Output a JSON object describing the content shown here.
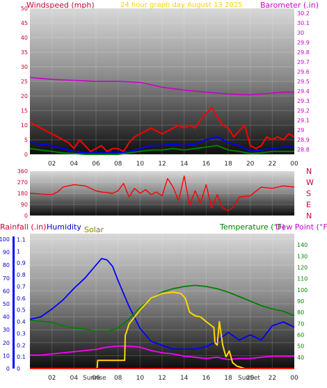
{
  "chart_data": [
    {
      "type": "line",
      "title": "24 hour graph day   August 13 2025",
      "ylabel_left": "Windspeed (mph)",
      "ylabel_right": "Barometer (.in)",
      "x_ticks": [
        "02",
        "04",
        "06",
        "08",
        "10",
        "12",
        "14",
        "16",
        "18",
        "20",
        "22",
        "00"
      ],
      "ylim_left": [
        0,
        50
      ],
      "ylim_right": [
        28.75,
        30.25
      ],
      "y_ticks_left": [
        0,
        5,
        10,
        15,
        20,
        25,
        30,
        35,
        40,
        45,
        50
      ],
      "y_ticks_right": [
        "28.8",
        "28.9",
        "29",
        "29.1",
        "29.2",
        "29.3",
        "29.4",
        "29.5",
        "29.6",
        "29.7",
        "29.8",
        "29.9",
        "30",
        "30.1",
        "30.2"
      ],
      "colors": {
        "gust": "#ff0000",
        "average": "#0000ff",
        "low": "#008000",
        "barometer": "#cc00cc",
        "title": "#ffd400",
        "left_axis": "#cc0033",
        "right_axis": "#cc00cc"
      },
      "series": [
        {
          "name": "Barometer",
          "axis": "right",
          "x": [
            0,
            2,
            4,
            6,
            8,
            10,
            12,
            14,
            16,
            18,
            20,
            21,
            22,
            23,
            24
          ],
          "values": [
            29.54,
            29.52,
            29.51,
            29.5,
            29.5,
            29.49,
            29.44,
            29.41,
            29.39,
            29.37,
            29.36,
            29.37,
            29.38,
            29.39,
            29.39
          ]
        },
        {
          "name": "Gust",
          "axis": "left",
          "x": [
            0,
            0.5,
            1,
            1.5,
            2,
            2.5,
            3,
            3.5,
            4,
            4.5,
            5,
            5.5,
            6,
            6.5,
            7,
            7.5,
            8,
            8.5,
            9,
            9.5,
            10,
            10.5,
            11,
            11.5,
            12,
            12.5,
            13,
            13.5,
            14,
            14.5,
            15,
            15.5,
            16,
            16.5,
            17,
            17.5,
            18,
            18.5,
            19,
            19.5,
            20,
            20.5,
            21,
            21.5,
            22,
            22.5,
            23,
            23.5,
            24
          ],
          "values": [
            11,
            10,
            9,
            8,
            7,
            6,
            5,
            4,
            2,
            5,
            3,
            1,
            2,
            3,
            1,
            2,
            2,
            1,
            4,
            6,
            7,
            8,
            9,
            8,
            7,
            8,
            9,
            10,
            9,
            10,
            9,
            12,
            14,
            16,
            13,
            10,
            9,
            6,
            8,
            10,
            3,
            2,
            3,
            6,
            5,
            6,
            5,
            7,
            6
          ]
        },
        {
          "name": "Wind",
          "axis": "left",
          "x": [
            0,
            1,
            2,
            3,
            4,
            5,
            6,
            7,
            8,
            9,
            10,
            11,
            12,
            13,
            14,
            15,
            16,
            17,
            18,
            19,
            20,
            21,
            22,
            23,
            24
          ],
          "values": [
            4,
            3.5,
            3,
            2,
            1,
            0.5,
            0.5,
            0.5,
            0.5,
            1,
            2,
            3,
            3,
            3.5,
            3,
            3.5,
            5,
            6,
            4,
            3,
            1,
            1.5,
            2,
            2.5,
            2.5
          ]
        },
        {
          "name": "Low",
          "axis": "left",
          "x": [
            0,
            1,
            2,
            3,
            4,
            5,
            6,
            7,
            8,
            9,
            10,
            11,
            12,
            13,
            14,
            15,
            16,
            17,
            18,
            19,
            20,
            21,
            22,
            23,
            24
          ],
          "values": [
            2,
            1.5,
            1,
            0.5,
            0.3,
            0,
            0,
            0,
            0,
            0.5,
            1,
            1.5,
            1.5,
            2,
            1.5,
            2,
            2.5,
            3,
            1.5,
            1,
            0.3,
            0.5,
            1,
            1,
            1
          ]
        }
      ]
    },
    {
      "type": "line",
      "ylabel_right_letters": [
        "N",
        "W",
        "S",
        "E",
        "N"
      ],
      "ylim": [
        0,
        360
      ],
      "y_ticks": [
        0,
        90,
        180,
        270,
        360
      ],
      "colors": {
        "direction": "#ff0000",
        "axis": "#cc0033"
      },
      "series": [
        {
          "name": "Wind Direction",
          "x": [
            0,
            1,
            2,
            2.5,
            3,
            4,
            5,
            6,
            6.5,
            7,
            7.5,
            8,
            8.5,
            9,
            9.5,
            10,
            10.5,
            11,
            11.5,
            12,
            12.5,
            13,
            13.5,
            14,
            14.5,
            15,
            15.5,
            16,
            16.5,
            17,
            17.5,
            18,
            18.5,
            19,
            20,
            21,
            22,
            23,
            24
          ],
          "values": [
            180,
            175,
            170,
            190,
            230,
            250,
            240,
            200,
            190,
            185,
            180,
            200,
            260,
            150,
            220,
            180,
            210,
            170,
            190,
            160,
            300,
            230,
            120,
            320,
            80,
            200,
            100,
            250,
            60,
            170,
            60,
            40,
            70,
            150,
            160,
            230,
            220,
            240,
            230
          ]
        }
      ]
    },
    {
      "type": "line",
      "ylabel_left": "Rainfall (.in)",
      "ylabel_humidity": "Humidity",
      "ylabel_solar": "Solar",
      "ylabel_right": "Temperature (°F)",
      "ylabel_right2": "Dew Point (°F)",
      "x_ticks": [
        "02",
        "04",
        "06",
        "08",
        "10",
        "12",
        "14",
        "16",
        "18",
        "20",
        "22",
        "00"
      ],
      "sun_labels": {
        "sunrise": "Sunrise",
        "sunset": "SunSet"
      },
      "ylim_humidity": [
        0,
        100
      ],
      "ylim_rain": [
        0,
        1.15
      ],
      "ylim_temperature": [
        30,
        150
      ],
      "y_ticks_humidity": [
        0,
        10,
        20,
        30,
        40,
        50,
        60,
        70,
        80,
        90,
        100
      ],
      "y_ticks_rain": [
        "0",
        "0.1",
        "0.2",
        "0.3",
        "0.4",
        "0.5",
        "0.6",
        "0.7",
        "0.8",
        "0.9",
        "1",
        "1.1"
      ],
      "y_ticks_temperature": [
        40,
        50,
        60,
        70,
        80,
        90,
        100,
        110,
        120,
        130,
        140
      ],
      "colors": {
        "rain": "#ff0000",
        "humidity": "#0000ff",
        "solar": "#ffd700",
        "temperature": "#008000",
        "dewpoint": "#ff00ff",
        "rain_axis": "#0000cc",
        "temp_axis": "#008000"
      },
      "series": [
        {
          "name": "Humidity",
          "axis": "humidity",
          "x": [
            0,
            1,
            2,
            3,
            4,
            5,
            6,
            6.5,
            7,
            7.5,
            8,
            9,
            10,
            11,
            12,
            13,
            14,
            15,
            16,
            17,
            18,
            19,
            20,
            21,
            22,
            23,
            24
          ],
          "values": [
            38,
            40,
            46,
            53,
            62,
            70,
            80,
            85,
            84,
            79,
            68,
            48,
            31,
            21,
            18,
            15,
            15,
            15,
            17,
            21,
            28,
            22,
            26,
            22,
            33,
            36,
            32
          ]
        },
        {
          "name": "Temperature",
          "axis": "temperature",
          "x": [
            0,
            1,
            2,
            3,
            4,
            5,
            6,
            7,
            8,
            9,
            10,
            11,
            12,
            13,
            14,
            15,
            16,
            17,
            18,
            19,
            20,
            21,
            22,
            23,
            24
          ],
          "values": [
            73,
            72,
            71,
            68,
            66,
            65,
            63,
            63,
            66,
            74,
            84,
            92,
            98,
            101,
            103,
            104,
            103,
            101,
            98,
            94,
            90,
            86,
            83,
            81,
            77
          ]
        },
        {
          "name": "Dew Point",
          "axis": "temperature",
          "x": [
            0,
            1,
            2,
            3,
            4,
            5,
            6,
            7,
            8,
            9,
            10,
            11,
            12,
            13,
            14,
            15,
            16,
            17,
            18,
            19,
            20,
            21,
            22,
            23,
            24
          ],
          "values": [
            42,
            42,
            43,
            44,
            45,
            46,
            47,
            49,
            50,
            50,
            49,
            46,
            44,
            43,
            41,
            40,
            39,
            40,
            38,
            39,
            39,
            40,
            41,
            41,
            41
          ]
        },
        {
          "name": "Solar",
          "axis": "rain_scale",
          "x": [
            0,
            6.1,
            6.15,
            8.6,
            8.65,
            9,
            10,
            11,
            12,
            13,
            13.7,
            14.1,
            14.5,
            15,
            15.5,
            16,
            16.7,
            16.8,
            17,
            17.2,
            17.5,
            17.8,
            18.1,
            18.4,
            18.8,
            19.5,
            24
          ],
          "values": [
            0,
            0,
            0.07,
            0.07,
            0.28,
            0.38,
            0.5,
            0.6,
            0.64,
            0.65,
            0.64,
            0.6,
            0.48,
            0.45,
            0.44,
            0.4,
            0.35,
            0.22,
            0.2,
            0.4,
            0.2,
            0.1,
            0.15,
            0.05,
            0.02,
            0,
            0
          ]
        },
        {
          "name": "Rain",
          "axis": "rain",
          "x": [
            0,
            24
          ],
          "values": [
            0,
            0
          ]
        }
      ]
    }
  ]
}
